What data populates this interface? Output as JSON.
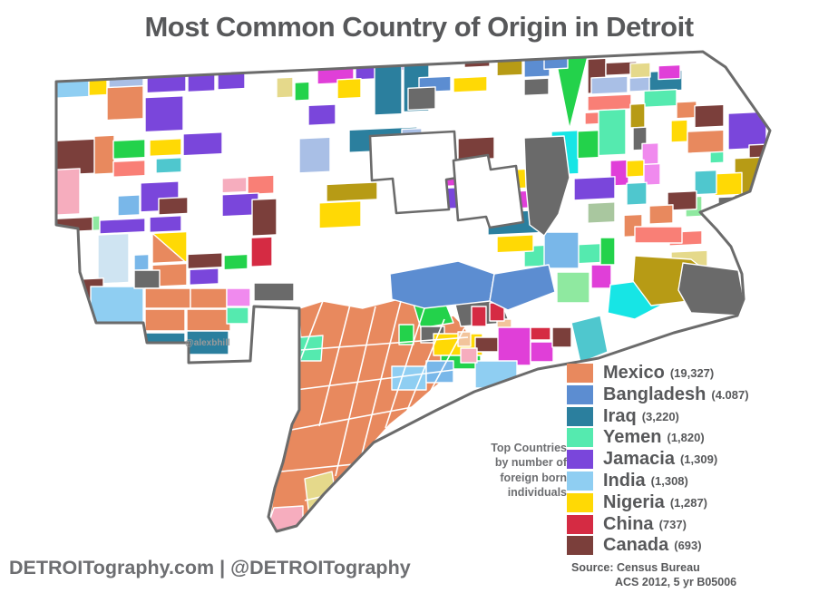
{
  "title": "Most Common Country of Origin in Detroit",
  "watermark": "@alexbhill",
  "footer": "DETROITography.com | @DETROITography",
  "note": {
    "lines": [
      "Top Countries",
      "by number of",
      "foreign born",
      "individuals"
    ]
  },
  "source": {
    "line1": "Source: Census Bureau",
    "line2": "ACS 2012, 5 yr B05006"
  },
  "legend": [
    {
      "country": "Mexico",
      "count": "(19,327)",
      "color": "#E8895E"
    },
    {
      "country": "Bangladesh",
      "count": "(4.087)",
      "color": "#5C8DD1"
    },
    {
      "country": "Iraq",
      "count": "(3,220)",
      "color": "#2B7F9E"
    },
    {
      "country": "Yemen",
      "count": "(1,820)",
      "color": "#55EAAF"
    },
    {
      "country": "Jamacia",
      "count": "(1,309)",
      "color": "#7A46DB"
    },
    {
      "country": "India",
      "count": "(1,308)",
      "color": "#8FCEF2"
    },
    {
      "country": "Nigeria",
      "count": "(1,287)",
      "color": "#FFD905"
    },
    {
      "country": "China",
      "count": "(737)",
      "color": "#D52B43"
    },
    {
      "country": "Canada",
      "count": "(693)",
      "color": "#7B3F3B"
    }
  ],
  "chart_data": {
    "type": "choropleth-map",
    "region": "Detroit census tracts",
    "metric": "Most common country of origin of foreign born individuals",
    "entries": [
      {
        "country": "Mexico",
        "value": 19327
      },
      {
        "country": "Bangladesh",
        "value": 4087
      },
      {
        "country": "Iraq",
        "value": 3220
      },
      {
        "country": "Yemen",
        "value": 1820
      },
      {
        "country": "Jamacia",
        "value": 1309
      },
      {
        "country": "India",
        "value": 1308
      },
      {
        "country": "Nigeria",
        "value": 1287
      },
      {
        "country": "China",
        "value": 737
      },
      {
        "country": "Canada",
        "value": 693
      }
    ],
    "source": "Census Bureau ACS 2012, 5 yr B05006"
  },
  "map": {
    "boundary_color": "#6B6B6B",
    "tract_stroke": "#FFFFFF",
    "shear": -0.046,
    "palette": {
      "mx": "#E8895E",
      "bd": "#5C8DD1",
      "iq": "#2B7F9E",
      "ym": "#55EAAF",
      "jm": "#7A46DB",
      "in": "#8FCEF2",
      "ng": "#FFD905",
      "cn": "#D52B43",
      "ca": "#7B3F3B",
      "mg": "#E03FD8",
      "oc": "#F08AEE",
      "pp": "#F6ADBE",
      "sl": "#F97F76",
      "gr": "#23D24B",
      "pg": "#8FE9A0",
      "sg": "#A9C79F",
      "cy": "#17E5E5",
      "tq": "#4FC7CE",
      "ol": "#B79B15",
      "pk": "#E5D98B",
      "gy": "#6A6A6A",
      "pw": "#A9BFE6",
      "sb": "#79B7E9",
      "db": "#CFE4F2",
      "tn": "#F2C49B"
    },
    "boundary": "62,90 775,57 800,74 849,144 838,176 827,211 772,234 790,253 806,272 818,302 820,330 813,348 743,367 660,395 593,407 523,432 480,453 412,488 357,545 327,580 305,586 296,570 303,538 312,510 322,468 330,452 330,340 280,338 276,398 208,400 208,378 162,378 158,356 106,356 88,300 86,252 62,248",
    "enclaves": [
      "408,150 501,145 504,196 492,198 495,231 437,235 433,197 410,199",
      "500,177 538,171 541,187 569,183 577,245 540,251 536,239 505,243"
    ],
    "north_tracts": [
      [
        "in",
        58,
        81,
        40,
        30
      ],
      [
        "ng",
        98,
        80,
        20,
        30
      ],
      [
        "pw",
        120,
        81,
        38,
        28
      ],
      [
        "jm",
        162,
        82,
        43,
        28
      ],
      [
        "jm",
        207,
        83,
        30,
        28
      ],
      [
        "jm",
        240,
        84,
        30,
        26
      ],
      [
        "pk",
        305,
        100,
        18,
        22
      ],
      [
        "gr",
        325,
        106,
        16,
        20
      ],
      [
        "mg",
        350,
        81,
        40,
        28
      ],
      [
        "jm",
        392,
        80,
        38,
        26
      ],
      [
        "jm",
        420,
        80,
        40,
        18
      ],
      [
        "iq",
        413,
        84,
        30,
        62
      ],
      [
        "iq",
        445,
        86,
        28,
        58
      ],
      [
        "ca",
        512,
        80,
        28,
        18
      ],
      [
        "ol",
        548,
        87,
        28,
        22
      ],
      [
        "bd",
        578,
        92,
        28,
        20
      ],
      [
        "gy",
        578,
        114,
        27,
        18
      ],
      [
        "gr",
        "612,90 648,92 628,171"
      ],
      [
        "ca",
        648,
        95,
        20,
        38
      ],
      [
        "ca",
        668,
        100,
        34,
        14
      ],
      [
        "pw",
        652,
        116,
        40,
        18
      ],
      [
        "pw",
        694,
        117,
        26,
        16
      ],
      [
        "iq",
        716,
        112,
        36,
        22
      ],
      [
        "sl",
        648,
        136,
        48,
        16
      ],
      [
        "sl",
        645,
        154,
        30,
        13
      ],
      [
        "ym",
        710,
        133,
        36,
        18
      ],
      [
        "ol",
        695,
        147,
        16,
        26
      ],
      [
        "ym",
        660,
        152,
        30,
        50
      ],
      [
        "cy",
        608,
        173,
        30,
        48
      ],
      [
        "gr",
        637,
        174,
        23,
        30
      ],
      [
        "gy",
        698,
        173,
        15,
        25
      ],
      [
        "oc",
        708,
        191,
        18,
        28
      ],
      [
        "mg",
        673,
        208,
        20,
        28
      ],
      [
        "ng",
        691,
        209,
        19,
        18
      ],
      [
        "oc",
        710,
        214,
        18,
        23
      ],
      [
        "jm",
        633,
        226,
        45,
        24
      ],
      [
        "tq",
        691,
        234,
        22,
        24
      ],
      [
        "sg",
        648,
        254,
        30,
        22
      ],
      [
        "mx",
        688,
        269,
        20,
        24
      ],
      [
        "mx",
        746,
        147,
        22,
        18
      ],
      [
        "ca",
        766,
        152,
        32,
        24
      ],
      [
        "ng",
        740,
        167,
        18,
        24
      ],
      [
        "jm",
        803,
        162,
        42,
        40
      ],
      [
        "ca",
        826,
        198,
        22,
        44
      ],
      [
        "ym",
        783,
        197,
        15,
        19
      ],
      [
        "ol",
        810,
        212,
        34,
        44
      ],
      [
        "ng",
        788,
        228,
        30,
        24
      ],
      [
        "tq",
        766,
        224,
        24,
        26
      ],
      [
        "gy",
        792,
        254,
        16,
        18
      ],
      [
        "pg",
        756,
        252,
        18,
        22
      ],
      [
        "ca",
        736,
        246,
        32,
        20
      ],
      [
        "mx",
        716,
        260,
        26,
        20
      ],
      [
        "sl",
        738,
        290,
        36,
        15
      ],
      [
        "pk",
        740,
        312,
        40,
        18
      ],
      [
        "mx",
        758,
        180,
        40,
        24
      ],
      [
        "pk",
        695,
        102,
        22,
        16
      ],
      [
        "mg",
        726,
        106,
        24,
        15
      ],
      [
        "bd",
        600,
        89,
        26,
        15
      ],
      [
        "mx",
        118,
        102,
        40,
        36
      ],
      [
        "jm",
        160,
        115,
        42,
        38
      ],
      [
        "ca",
        62,
        158,
        43,
        38
      ],
      [
        "mx",
        104,
        155,
        22,
        42
      ],
      [
        "gr",
        125,
        161,
        35,
        20
      ],
      [
        "ng",
        165,
        162,
        35,
        18
      ],
      [
        "jm",
        202,
        157,
        43,
        24
      ],
      [
        "tq",
        172,
        183,
        28,
        16
      ],
      [
        "sl",
        125,
        184,
        35,
        17
      ],
      [
        "pp",
        62,
        190,
        26,
        50
      ],
      [
        "jm",
        155,
        209,
        42,
        32
      ],
      [
        "sb",
        130,
        222,
        24,
        22
      ],
      [
        "ca",
        175,
        227,
        32,
        18
      ],
      [
        "pp",
        245,
        208,
        27,
        16
      ],
      [
        "sl",
        273,
        207,
        29,
        20
      ],
      [
        "jm",
        245,
        226,
        40,
        24
      ],
      [
        "ca",
        278,
        233,
        27,
        40
      ],
      [
        "cn",
        277,
        275,
        23,
        32
      ],
      [
        "pg",
        88,
        243,
        22,
        16
      ],
      [
        "jm",
        110,
        248,
        50,
        15
      ],
      [
        "ca",
        62,
        244,
        40,
        15
      ],
      [
        "jm",
        165,
        247,
        35,
        17
      ],
      [
        "ng",
        168,
        265,
        38,
        33
      ],
      [
        "mx",
        "168,265 168,298 204,298"
      ],
      [
        "db",
        108,
        264,
        34,
        54
      ],
      [
        "sb",
        148,
        288,
        16,
        17
      ],
      [
        "mx",
        168,
        300,
        38,
        24
      ],
      [
        "ca",
        207,
        290,
        38,
        16
      ],
      [
        "jm",
        209,
        307,
        32,
        17
      ],
      [
        "gr",
        247,
        293,
        26,
        16
      ],
      [
        "ca",
        62,
        312,
        52,
        54
      ],
      [
        "jm",
        340,
        132,
        30,
        22
      ],
      [
        "ng",
        372,
        105,
        26,
        21
      ],
      [
        "bd",
        462,
        107,
        35,
        16
      ],
      [
        "ng",
        500,
        109,
        37,
        16
      ],
      [
        "gy",
        450,
        118,
        30,
        24
      ],
      [
        "iq",
        385,
        161,
        75,
        25
      ],
      [
        "pw",
        443,
        163,
        22,
        42
      ],
      [
        "ca",
        505,
        176,
        40,
        24
      ],
      [
        "cy",
        440,
        218,
        25,
        19
      ],
      [
        "mg",
        484,
        203,
        56,
        25
      ],
      [
        "jm",
        484,
        230,
        56,
        23
      ],
      [
        "ng",
        545,
        213,
        50,
        21
      ],
      [
        "mg",
        545,
        237,
        50,
        19
      ],
      [
        "iq",
        538,
        259,
        62,
        25
      ],
      [
        "ng",
        352,
        240,
        46,
        28
      ],
      [
        "ol",
        360,
        220,
        56,
        19
      ],
      [
        "pw",
        330,
        168,
        34,
        38
      ],
      [
        "ym",
        578,
        298,
        40,
        23
      ],
      [
        "ym",
        620,
        299,
        42,
        21
      ],
      [
        "ng",
        548,
        286,
        40,
        18
      ]
    ],
    "south_tracts": [
      [
        "in",
        100,
        316,
        58,
        46
      ],
      [
        "gy",
        148,
        298,
        28,
        20
      ],
      [
        "mx",
        160,
        318,
        50,
        22
      ],
      [
        "mx",
        210,
        318,
        40,
        22
      ],
      [
        "oc",
        250,
        318,
        26,
        20
      ],
      [
        "gy",
        280,
        312,
        44,
        20
      ],
      [
        "mx",
        160,
        341,
        44,
        24
      ],
      [
        "mx",
        206,
        341,
        48,
        24
      ],
      [
        "iq",
        160,
        367,
        44,
        26
      ],
      [
        "iq",
        206,
        365,
        46,
        26
      ],
      [
        "iq",
        168,
        393,
        40,
        14
      ],
      [
        "ym",
        250,
        339,
        24,
        18
      ],
      [
        "mx",
        "318,344 356,332 400,340 440,330 470,338 486,352 500,348 512,360 520,378 508,392 498,412 478,428 455,448 430,468 412,488 383,517 357,545 340,565 327,580 305,586 298,570 303,538 312,510 322,468 330,452 330,398 332,377 330,346"
      ],
      [
        "gr",
        "455,332 488,326 500,356 464,362"
      ],
      [
        "gy",
        "500,328 548,320 562,356 508,360"
      ],
      [
        "tn",
        548,
        352,
        16,
        14
      ],
      [
        "ym",
        "330,372 356,370 354,398 330,398"
      ],
      [
        "pk",
        "336,528 366,520 372,560 342,578"
      ],
      [
        "pp",
        "302,560 334,558 334,598 307,588 298,572"
      ],
      [
        "gr",
        440,
        358,
        16,
        22
      ],
      [
        "gy",
        464,
        360,
        26,
        18
      ],
      [
        "ng",
        478,
        368,
        54,
        24
      ],
      [
        "gr",
        486,
        392,
        44,
        15
      ],
      [
        "ca",
        524,
        372,
        30,
        16
      ],
      [
        "mg",
        549,
        361,
        36,
        42
      ],
      [
        "cn",
        585,
        361,
        22,
        14
      ],
      [
        "mg",
        585,
        377,
        25,
        22
      ],
      [
        "ca",
        609,
        361,
        21,
        22
      ],
      [
        "tq",
        "630,356 662,348 670,388 640,400"
      ],
      [
        "in",
        432,
        404,
        38,
        26
      ],
      [
        "sb",
        470,
        398,
        30,
        24
      ],
      [
        "in",
        524,
        398,
        46,
        30
      ],
      [
        "cn",
        520,
        338,
        16,
        22
      ],
      [
        "cn",
        540,
        334,
        16,
        20
      ],
      [
        "tn",
        505,
        366,
        14,
        16
      ],
      [
        "pp",
        508,
        384,
        18,
        16
      ],
      [
        "cn",
        558,
        424,
        16,
        14
      ],
      [
        "cy",
        576,
        428,
        18,
        14
      ],
      [
        "ng",
        594,
        418,
        16,
        14
      ],
      [
        "sb",
        600,
        256,
        38,
        40
      ],
      [
        "pg",
        614,
        300,
        36,
        34
      ],
      [
        "mg",
        652,
        292,
        22,
        26
      ],
      [
        "gr",
        662,
        262,
        16,
        30
      ],
      [
        "cy",
        "673,314 718,308 742,330 700,352 670,345"
      ],
      [
        "ol",
        "700,282 762,286 780,300 776,330 718,337 698,310"
      ],
      [
        "gy",
        "753,290 814,298 820,330 813,348 762,345 748,320"
      ],
      [
        "sl",
        700,
        250,
        52,
        18
      ],
      [
        "bd",
        "430,302 505,288 545,302 540,332 468,340 432,330"
      ],
      [
        "bd",
        "545,302 605,292 612,322 560,342 540,332"
      ],
      [
        "gy",
        "578,152 622,150 628,196 616,236 600,260 584,248 580,206"
      ]
    ],
    "orange_streets": [
      "M356,332 L330,400",
      "M386,336 L352,470",
      "M414,338 L370,525",
      "M442,332 L398,505",
      "M468,340 L425,472",
      "M490,352 L448,455",
      "M512,362 L470,440",
      "M332,386 L516,372",
      "M326,430 L500,408",
      "M316,475 L460,448",
      "M310,520 L390,512",
      "M336,552 L362,546"
    ]
  }
}
